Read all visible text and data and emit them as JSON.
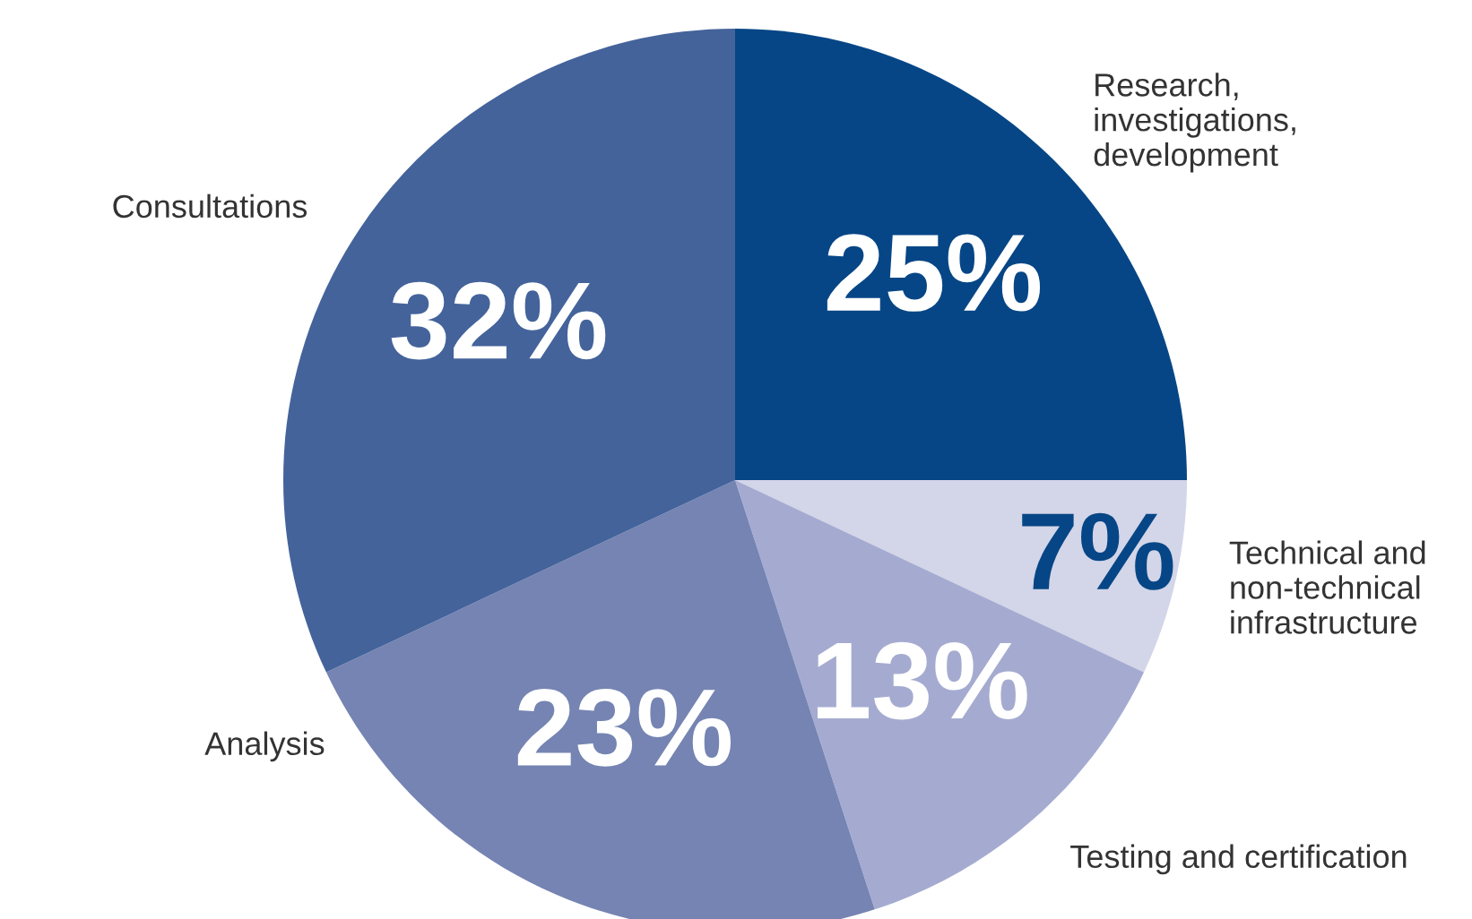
{
  "chart_data": {
    "type": "pie",
    "categories": [
      "Research,\ninvestigations,\ndevelopment",
      "Technical and\nnon-technical\ninfrastructure",
      "Testing and certification",
      "Analysis",
      "Consultations"
    ],
    "values": [
      25,
      7,
      13,
      23,
      32
    ],
    "colors": [
      "#064686",
      "#d3d5e8",
      "#a5abd0",
      "#7584b2",
      "#44639b"
    ],
    "value_labels": [
      "25%",
      "7%",
      "13%",
      "23%",
      "32%"
    ],
    "legend": false
  }
}
